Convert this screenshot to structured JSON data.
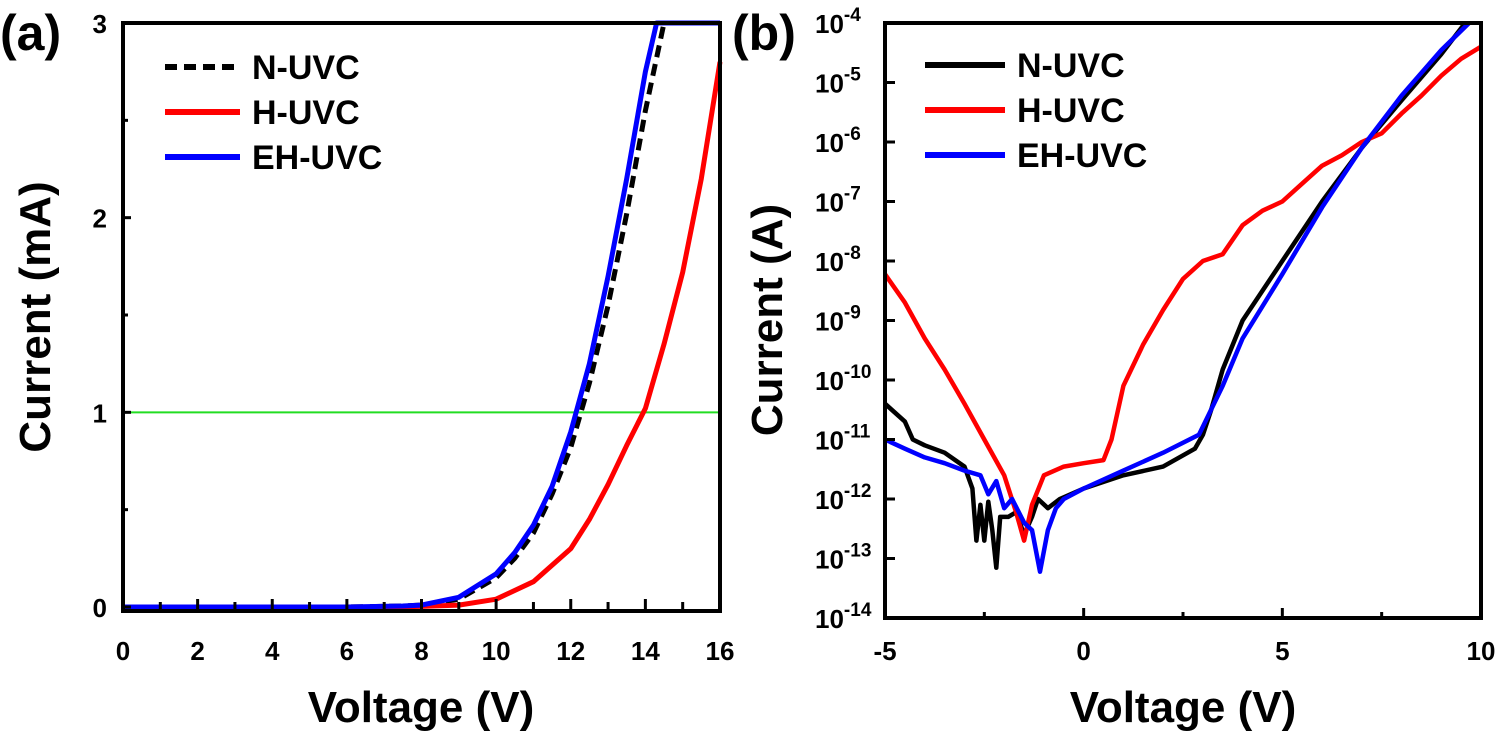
{
  "chart_data": [
    {
      "type": "line",
      "panel_label": "(a)",
      "xlabel": "Voltage (V)",
      "ylabel": "Current (mA)",
      "xlim": [
        0,
        16
      ],
      "ylim": [
        0,
        3
      ],
      "x_ticks": [
        "0",
        "2",
        "4",
        "6",
        "8",
        "10",
        "12",
        "14",
        "16"
      ],
      "y_ticks": [
        "0",
        "1",
        "2",
        "3"
      ],
      "legend_position": "top-left",
      "reference_line": {
        "y": 1.0,
        "color": "#22dd22"
      },
      "series": [
        {
          "name": "N-UVC",
          "color": "#000000",
          "style": "dashed",
          "points": [
            [
              0,
              0
            ],
            [
              6,
              0
            ],
            [
              7.5,
              0.005
            ],
            [
              8,
              0.01
            ],
            [
              9,
              0.04
            ],
            [
              10,
              0.15
            ],
            [
              10.5,
              0.25
            ],
            [
              11,
              0.38
            ],
            [
              11.5,
              0.58
            ],
            [
              12,
              0.82
            ],
            [
              12.5,
              1.15
            ],
            [
              13,
              1.55
            ],
            [
              13.5,
              2.02
            ],
            [
              14,
              2.55
            ],
            [
              14.5,
              3.0
            ],
            [
              16,
              3.0
            ]
          ]
        },
        {
          "name": "H-UVC",
          "color": "#ff0000",
          "style": "solid",
          "points": [
            [
              0,
              0
            ],
            [
              7,
              0
            ],
            [
              8,
              0.003
            ],
            [
              9,
              0.01
            ],
            [
              10,
              0.04
            ],
            [
              11,
              0.13
            ],
            [
              12,
              0.3
            ],
            [
              12.5,
              0.45
            ],
            [
              13,
              0.63
            ],
            [
              13.5,
              0.83
            ],
            [
              14,
              1.02
            ],
            [
              14.5,
              1.35
            ],
            [
              15,
              1.72
            ],
            [
              15.5,
              2.2
            ],
            [
              16,
              2.8
            ]
          ]
        },
        {
          "name": "EH-UVC",
          "color": "#0000ff",
          "style": "solid",
          "points": [
            [
              0,
              0
            ],
            [
              6,
              0
            ],
            [
              7.5,
              0.005
            ],
            [
              8,
              0.01
            ],
            [
              9,
              0.05
            ],
            [
              10,
              0.17
            ],
            [
              10.5,
              0.28
            ],
            [
              11,
              0.42
            ],
            [
              11.5,
              0.62
            ],
            [
              12,
              0.9
            ],
            [
              12.5,
              1.25
            ],
            [
              13,
              1.7
            ],
            [
              13.5,
              2.2
            ],
            [
              14,
              2.75
            ],
            [
              14.3,
              3.0
            ],
            [
              16,
              3.0
            ]
          ]
        }
      ]
    },
    {
      "type": "line",
      "panel_label": "(b)",
      "xlabel": "Voltage (V)",
      "ylabel": "Current (A)",
      "xlim": [
        -5,
        10
      ],
      "y_scale": "log",
      "ylim": [
        1e-14,
        0.0001
      ],
      "x_ticks": [
        "-5",
        "0",
        "5",
        "10"
      ],
      "y_ticks": [
        {
          "base": "10",
          "exp": "-14"
        },
        {
          "base": "10",
          "exp": "-13"
        },
        {
          "base": "10",
          "exp": "-12"
        },
        {
          "base": "10",
          "exp": "-11"
        },
        {
          "base": "10",
          "exp": "-10"
        },
        {
          "base": "10",
          "exp": "-9"
        },
        {
          "base": "10",
          "exp": "-8"
        },
        {
          "base": "10",
          "exp": "-7"
        },
        {
          "base": "10",
          "exp": "-6"
        },
        {
          "base": "10",
          "exp": "-5"
        },
        {
          "base": "10",
          "exp": "-4"
        }
      ],
      "legend_position": "top-left",
      "series": [
        {
          "name": "N-UVC",
          "color": "#000000",
          "style": "solid",
          "points": [
            [
              -5,
              4e-11
            ],
            [
              -4.5,
              2e-11
            ],
            [
              -4.3,
              1e-11
            ],
            [
              -4,
              8e-12
            ],
            [
              -3.5,
              6e-12
            ],
            [
              -3,
              3.5e-12
            ],
            [
              -2.8,
              1.5e-12
            ],
            [
              -2.7,
              2e-13
            ],
            [
              -2.6,
              8e-13
            ],
            [
              -2.5,
              2e-13
            ],
            [
              -2.4,
              9e-13
            ],
            [
              -2.3,
              3e-13
            ],
            [
              -2.2,
              7e-14
            ],
            [
              -2.1,
              5e-13
            ],
            [
              -1.9,
              5e-13
            ],
            [
              -1.7,
              6e-13
            ],
            [
              -1.5,
              2.5e-13
            ],
            [
              -1.3,
              5e-13
            ],
            [
              -1.15,
              1e-12
            ],
            [
              -0.9,
              7e-13
            ],
            [
              -0.6,
              1e-12
            ],
            [
              0,
              1.5e-12
            ],
            [
              1,
              2.5e-12
            ],
            [
              2,
              3.5e-12
            ],
            [
              2.8,
              7e-12
            ],
            [
              3,
              1.2e-11
            ],
            [
              3.2,
              3e-11
            ],
            [
              3.5,
              1.5e-10
            ],
            [
              4,
              1e-09
            ],
            [
              5,
              1e-08
            ],
            [
              6,
              1e-07
            ],
            [
              7,
              8e-07
            ],
            [
              8,
              5e-06
            ],
            [
              9,
              3e-05
            ],
            [
              9.6,
              0.0001
            ]
          ]
        },
        {
          "name": "H-UVC",
          "color": "#ff0000",
          "style": "solid",
          "points": [
            [
              -5,
              6e-09
            ],
            [
              -4.5,
              2e-09
            ],
            [
              -4,
              5e-10
            ],
            [
              -3.5,
              1.5e-10
            ],
            [
              -3,
              4e-11
            ],
            [
              -2.5,
              1e-11
            ],
            [
              -2,
              2.5e-12
            ],
            [
              -1.7,
              6e-13
            ],
            [
              -1.5,
              2e-13
            ],
            [
              -1.3,
              8e-13
            ],
            [
              -1,
              2.5e-12
            ],
            [
              -0.5,
              3.5e-12
            ],
            [
              0,
              4e-12
            ],
            [
              0.5,
              4.5e-12
            ],
            [
              0.7,
              1e-11
            ],
            [
              1,
              8e-11
            ],
            [
              1.5,
              4e-10
            ],
            [
              2,
              1.5e-09
            ],
            [
              2.5,
              5e-09
            ],
            [
              3,
              1e-08
            ],
            [
              3.5,
              1.3e-08
            ],
            [
              4,
              4e-08
            ],
            [
              4.5,
              7e-08
            ],
            [
              5,
              1e-07
            ],
            [
              5.5,
              2e-07
            ],
            [
              6,
              4e-07
            ],
            [
              6.5,
              6e-07
            ],
            [
              7,
              1e-06
            ],
            [
              7.5,
              1.4e-06
            ],
            [
              8,
              3e-06
            ],
            [
              8.5,
              6e-06
            ],
            [
              9,
              1.3e-05
            ],
            [
              9.5,
              2.5e-05
            ],
            [
              10,
              4e-05
            ]
          ]
        },
        {
          "name": "EH-UVC",
          "color": "#0000ff",
          "style": "solid",
          "points": [
            [
              -5,
              1e-11
            ],
            [
              -4.5,
              7e-12
            ],
            [
              -4,
              5e-12
            ],
            [
              -3.5,
              4e-12
            ],
            [
              -3,
              3e-12
            ],
            [
              -2.6,
              2.5e-12
            ],
            [
              -2.4,
              1.2e-12
            ],
            [
              -2.2,
              2e-12
            ],
            [
              -2,
              7e-13
            ],
            [
              -1.8,
              1e-12
            ],
            [
              -1.5,
              4e-13
            ],
            [
              -1.3,
              3e-13
            ],
            [
              -1.1,
              6e-14
            ],
            [
              -0.9,
              3e-13
            ],
            [
              -0.7,
              7e-13
            ],
            [
              -0.5,
              1e-12
            ],
            [
              0,
              1.5e-12
            ],
            [
              1,
              3e-12
            ],
            [
              2,
              6e-12
            ],
            [
              2.9,
              1.2e-11
            ],
            [
              3.5,
              8e-11
            ],
            [
              4,
              5e-10
            ],
            [
              5,
              6e-09
            ],
            [
              6,
              8e-08
            ],
            [
              7,
              8e-07
            ],
            [
              8,
              6e-06
            ],
            [
              9,
              3.5e-05
            ],
            [
              9.7,
              0.0001
            ]
          ]
        }
      ]
    }
  ]
}
